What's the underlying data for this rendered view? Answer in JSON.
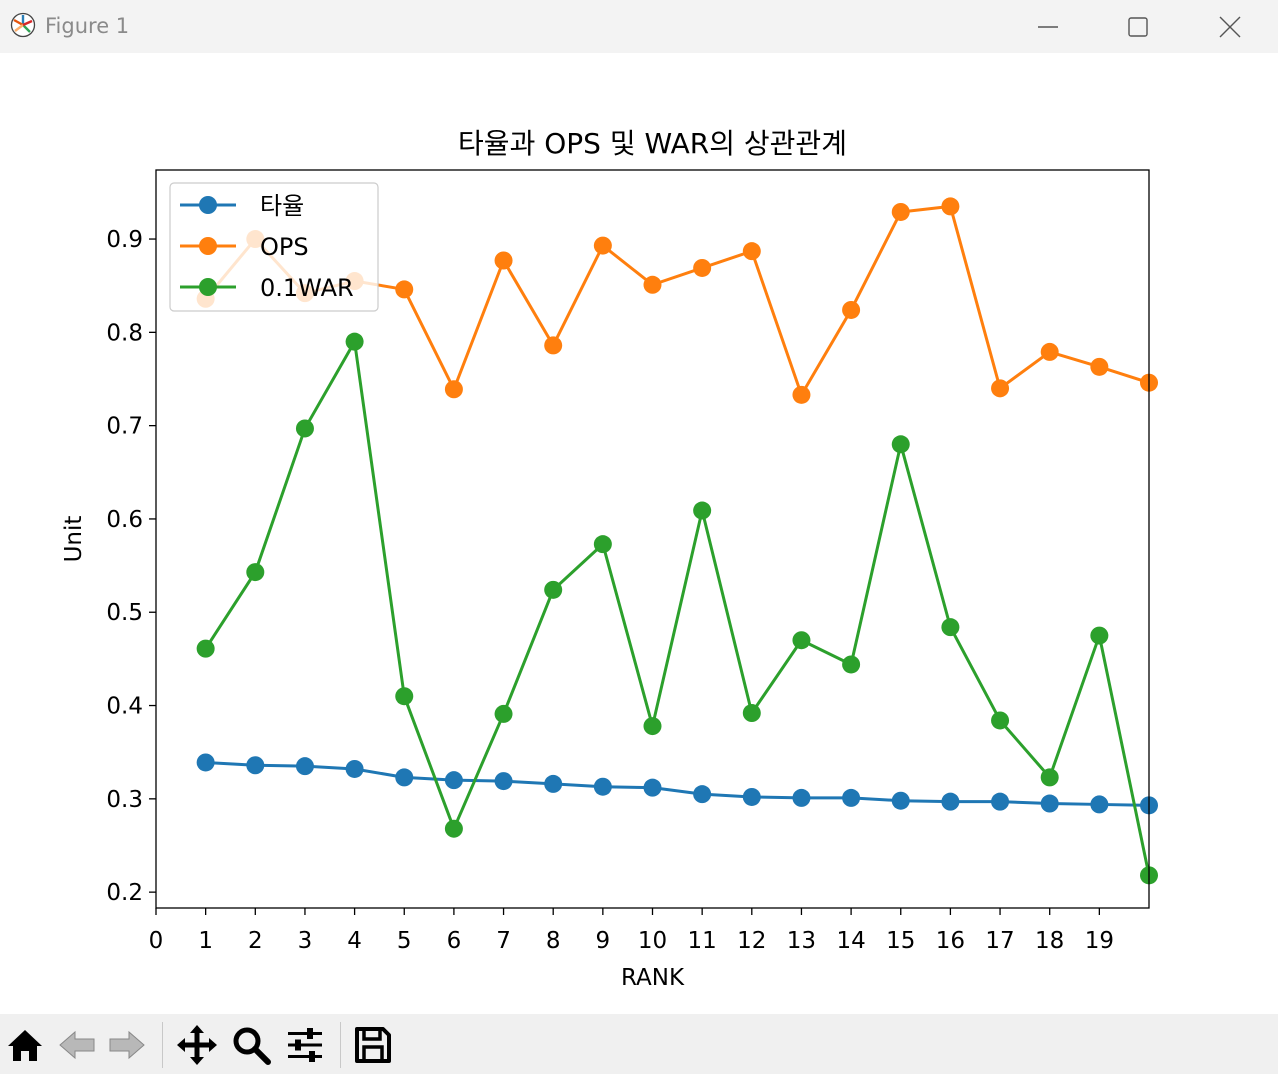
{
  "window": {
    "title": "Figure 1",
    "icons": {
      "app": "matplotlib-icon",
      "minimize": "minimize-icon",
      "maximize": "maximize-icon",
      "close": "close-icon"
    }
  },
  "toolbar": {
    "tools": [
      "home-icon",
      "back-arrow-icon",
      "forward-arrow-icon",
      "pan-move-icon",
      "zoom-magnifier-icon",
      "subplots-config-icon",
      "save-floppy-icon"
    ]
  },
  "chart_data": {
    "type": "line",
    "title": "타율과 OPS 및 WAR의 상관관계",
    "xlabel": "RANK",
    "ylabel": "Unit",
    "xlim": [
      0,
      20
    ],
    "ylim": [
      0.183,
      0.974
    ],
    "xticks": [
      0,
      1,
      2,
      3,
      4,
      5,
      6,
      7,
      8,
      9,
      10,
      11,
      12,
      13,
      14,
      15,
      16,
      17,
      18,
      19
    ],
    "yticks": [
      0.2,
      0.3,
      0.4,
      0.5,
      0.6,
      0.7,
      0.8,
      0.9
    ],
    "ytick_labels": [
      "0.2",
      "0.3",
      "0.4",
      "0.5",
      "0.6",
      "0.7",
      "0.8",
      "0.9"
    ],
    "grid": false,
    "legend_position": "upper-left",
    "x": [
      1,
      2,
      3,
      4,
      5,
      6,
      7,
      8,
      9,
      10,
      11,
      12,
      13,
      14,
      15,
      16,
      17,
      18,
      19,
      20
    ],
    "series": [
      {
        "name": "타율",
        "color": "#1f77b4",
        "marker": "circle",
        "values": [
          0.339,
          0.336,
          0.335,
          0.332,
          0.323,
          0.32,
          0.319,
          0.316,
          0.313,
          0.312,
          0.305,
          0.302,
          0.301,
          0.301,
          0.298,
          0.297,
          0.297,
          0.295,
          0.294,
          0.293
        ]
      },
      {
        "name": "OPS",
        "color": "#ff7f0e",
        "marker": "circle",
        "values": [
          0.836,
          0.9,
          0.842,
          0.855,
          0.846,
          0.739,
          0.877,
          0.786,
          0.893,
          0.851,
          0.869,
          0.887,
          0.733,
          0.824,
          0.929,
          0.935,
          0.74,
          0.779,
          0.763,
          0.746
        ]
      },
      {
        "name": "0.1WAR",
        "color": "#2ca02c",
        "marker": "circle",
        "values": [
          0.461,
          0.543,
          0.697,
          0.79,
          0.41,
          0.268,
          0.391,
          0.524,
          0.573,
          0.378,
          0.609,
          0.392,
          0.47,
          0.444,
          0.68,
          0.484,
          0.384,
          0.323,
          0.475,
          0.218
        ]
      }
    ]
  }
}
